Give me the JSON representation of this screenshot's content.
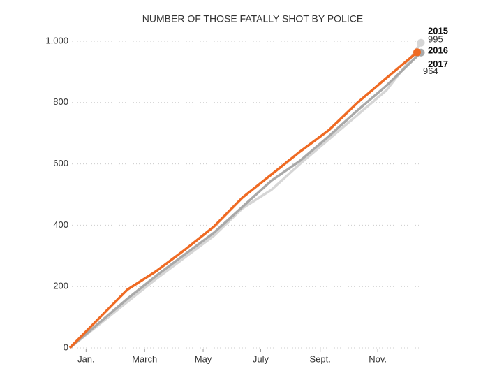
{
  "chart_data": {
    "type": "line",
    "title": "NUMBER OF THOSE FATALLY SHOT BY POLICE",
    "xlim": [
      0,
      366
    ],
    "xticks": [
      {
        "value": 17,
        "label": "Jan."
      },
      {
        "value": 78,
        "label": "March"
      },
      {
        "value": 139,
        "label": "May"
      },
      {
        "value": 199,
        "label": "July"
      },
      {
        "value": 261,
        "label": "Sept."
      },
      {
        "value": 321,
        "label": "Nov."
      }
    ],
    "ylim": [
      0,
      1000
    ],
    "yticks": [
      0,
      200,
      400,
      600,
      800,
      {
        "value": 1000,
        "label": "1,000"
      }
    ],
    "grid": true,
    "series": [
      {
        "name": "2015",
        "color": "#d6d6d6",
        "end_value_shown": true,
        "x": [
          0,
          30,
          60,
          90,
          120,
          150,
          180,
          210,
          240,
          270,
          300,
          330,
          350,
          366
        ],
        "values": [
          0,
          75,
          150,
          225,
          295,
          365,
          455,
          515,
          600,
          680,
          760,
          840,
          920,
          995
        ]
      },
      {
        "name": "2016",
        "color": "#a9a9a9",
        "end_value_shown": false,
        "x": [
          0,
          30,
          60,
          90,
          120,
          150,
          180,
          210,
          240,
          270,
          300,
          330,
          366
        ],
        "values": [
          0,
          80,
          160,
          235,
          305,
          375,
          460,
          545,
          610,
          690,
          775,
          855,
          963
        ]
      },
      {
        "name": "2017",
        "color": "#ef6a23",
        "end_value_shown": true,
        "x": [
          0,
          30,
          60,
          90,
          120,
          150,
          180,
          210,
          240,
          270,
          300,
          330,
          362
        ],
        "values": [
          0,
          95,
          190,
          250,
          320,
          395,
          490,
          565,
          640,
          710,
          800,
          880,
          964
        ]
      }
    ]
  }
}
